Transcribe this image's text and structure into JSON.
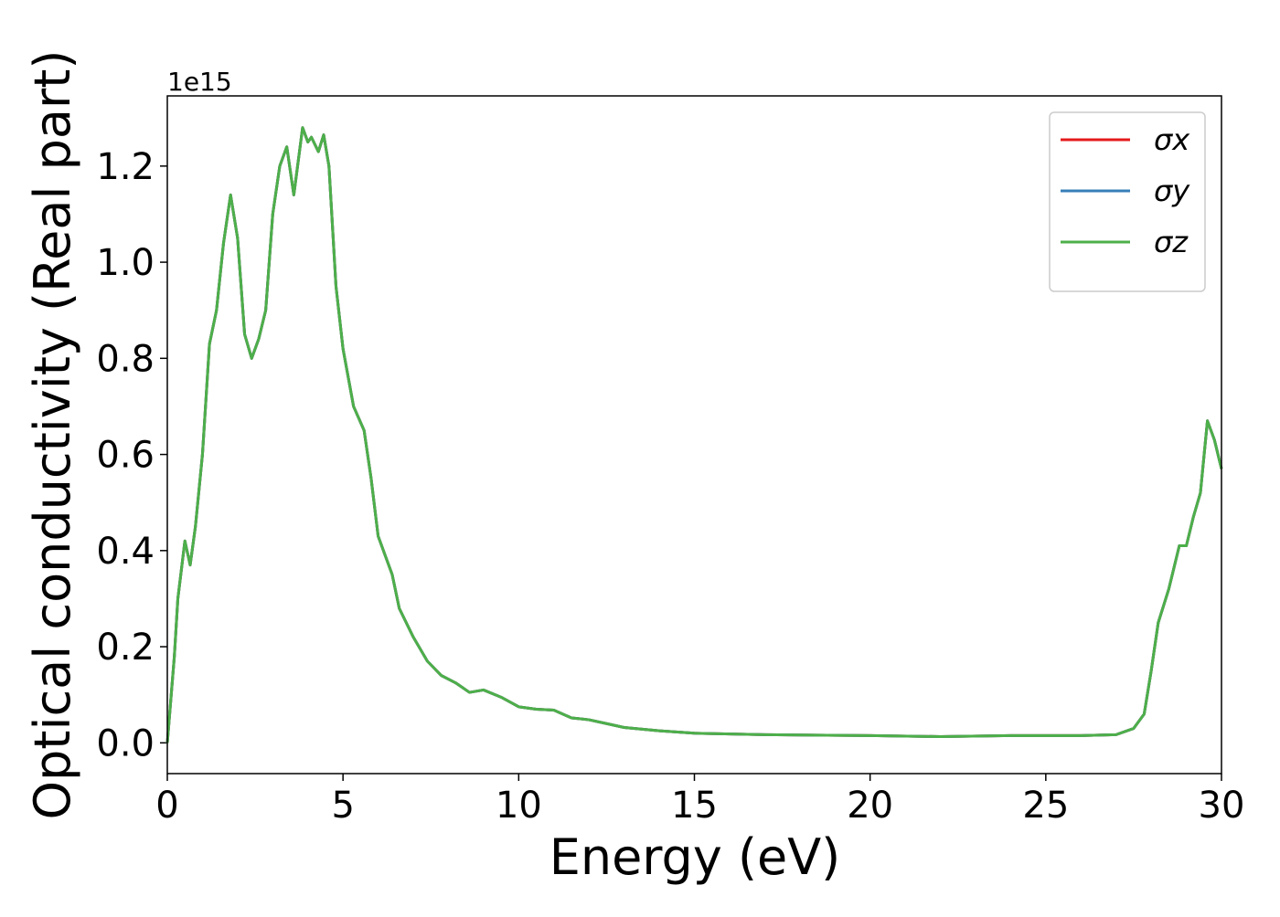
{
  "chart_data": {
    "type": "line",
    "x_label": "Energy (eV)",
    "y_label": "Optical conductivity (Real part)",
    "y_offset_label": "1e15",
    "x": [
      0,
      0.2,
      0.3,
      0.5,
      0.65,
      0.8,
      1.0,
      1.2,
      1.4,
      1.6,
      1.8,
      2.0,
      2.2,
      2.4,
      2.6,
      2.8,
      3.0,
      3.2,
      3.4,
      3.6,
      3.85,
      4.0,
      4.1,
      4.3,
      4.45,
      4.6,
      4.8,
      5.0,
      5.3,
      5.6,
      5.8,
      6.0,
      6.2,
      6.4,
      6.6,
      7.0,
      7.4,
      7.8,
      8.2,
      8.6,
      9.0,
      9.5,
      10,
      10.5,
      11,
      11.5,
      12,
      12.5,
      13,
      14,
      15,
      17,
      20,
      22,
      24,
      26,
      27,
      27.5,
      27.8,
      28.0,
      28.2,
      28.5,
      28.8,
      29.0,
      29.2,
      29.4,
      29.6,
      29.8,
      30
    ],
    "series": [
      {
        "name": "σx",
        "color": "#e41a1c",
        "values": [
          0,
          0.18,
          0.3,
          0.42,
          0.37,
          0.45,
          0.6,
          0.83,
          0.9,
          1.04,
          1.14,
          1.05,
          0.85,
          0.8,
          0.84,
          0.9,
          1.1,
          1.2,
          1.24,
          1.14,
          1.28,
          1.25,
          1.26,
          1.23,
          1.265,
          1.2,
          0.95,
          0.82,
          0.7,
          0.65,
          0.55,
          0.43,
          0.39,
          0.35,
          0.28,
          0.22,
          0.17,
          0.14,
          0.125,
          0.105,
          0.11,
          0.095,
          0.075,
          0.07,
          0.068,
          0.052,
          0.048,
          0.04,
          0.032,
          0.025,
          0.02,
          0.017,
          0.015,
          0.013,
          0.015,
          0.015,
          0.017,
          0.03,
          0.06,
          0.15,
          0.25,
          0.32,
          0.41,
          0.41,
          0.47,
          0.52,
          0.67,
          0.63,
          0.57
        ]
      },
      {
        "name": "σy",
        "color": "#377eb8",
        "values": [
          0,
          0.18,
          0.3,
          0.42,
          0.37,
          0.45,
          0.6,
          0.83,
          0.9,
          1.04,
          1.14,
          1.05,
          0.85,
          0.8,
          0.84,
          0.9,
          1.1,
          1.2,
          1.24,
          1.14,
          1.28,
          1.25,
          1.26,
          1.23,
          1.265,
          1.2,
          0.95,
          0.82,
          0.7,
          0.65,
          0.55,
          0.43,
          0.39,
          0.35,
          0.28,
          0.22,
          0.17,
          0.14,
          0.125,
          0.105,
          0.11,
          0.095,
          0.075,
          0.07,
          0.068,
          0.052,
          0.048,
          0.04,
          0.032,
          0.025,
          0.02,
          0.017,
          0.015,
          0.013,
          0.015,
          0.015,
          0.017,
          0.03,
          0.06,
          0.15,
          0.25,
          0.32,
          0.41,
          0.41,
          0.47,
          0.52,
          0.67,
          0.63,
          0.57
        ]
      },
      {
        "name": "σz",
        "color": "#4daf4a",
        "values": [
          0,
          0.18,
          0.3,
          0.42,
          0.37,
          0.45,
          0.6,
          0.83,
          0.9,
          1.04,
          1.14,
          1.05,
          0.85,
          0.8,
          0.84,
          0.9,
          1.1,
          1.2,
          1.24,
          1.14,
          1.28,
          1.25,
          1.26,
          1.23,
          1.265,
          1.2,
          0.95,
          0.82,
          0.7,
          0.65,
          0.55,
          0.43,
          0.39,
          0.35,
          0.28,
          0.22,
          0.17,
          0.14,
          0.125,
          0.105,
          0.11,
          0.095,
          0.075,
          0.07,
          0.068,
          0.052,
          0.048,
          0.04,
          0.032,
          0.025,
          0.02,
          0.017,
          0.015,
          0.013,
          0.015,
          0.015,
          0.017,
          0.03,
          0.06,
          0.15,
          0.25,
          0.32,
          0.41,
          0.41,
          0.47,
          0.52,
          0.67,
          0.63,
          0.57
        ]
      }
    ],
    "xlim": [
      0,
      30
    ],
    "xticks": [
      0,
      5,
      10,
      15,
      20,
      25,
      30
    ],
    "ylim": [
      -0.064,
      1.346
    ],
    "yticks": [
      {
        "value": 0,
        "label": "0.0"
      },
      0.2,
      0.4,
      0.6,
      0.8,
      {
        "value": 1,
        "label": "1.0"
      },
      1.2
    ],
    "grid": false,
    "legend": "upper right"
  }
}
